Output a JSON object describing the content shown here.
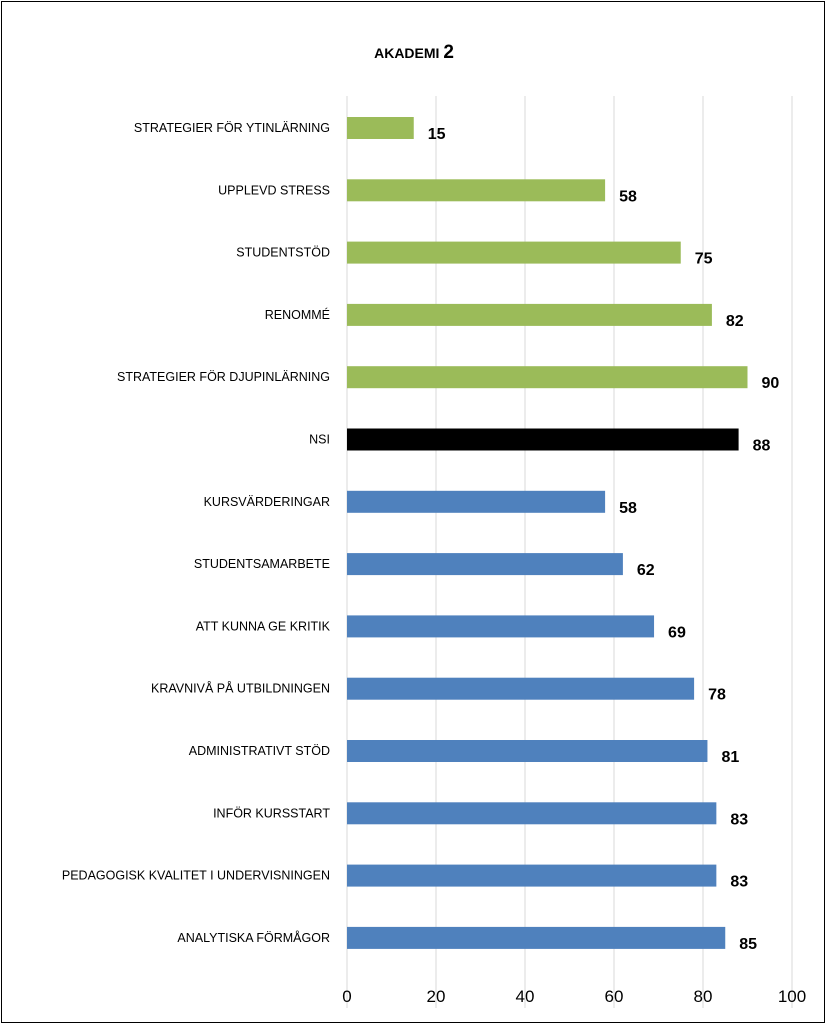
{
  "chart_data": {
    "type": "bar",
    "orientation": "horizontal",
    "title": {
      "prefix": "AKADEMI",
      "number": "2"
    },
    "categories": [
      "STRATEGIER FÖR YTINLÄRNING",
      "UPPLEVD STRESS",
      "STUDENTSTÖD",
      "RENOMMÉ",
      "STRATEGIER FÖR DJUPINLÄRNING",
      "NSI",
      "KURSVÄRDERINGAR",
      "STUDENTSAMARBETE",
      "ATT KUNNA GE KRITIK",
      "KRAVNIVÅ PÅ UTBILDNINGEN",
      "ADMINISTRATIVT STÖD",
      "INFÖR KURSSTART",
      "PEDAGOGISK KVALITET I UNDERVISNINGEN",
      "ANALYTISKA FÖRMÅGOR"
    ],
    "values": [
      15,
      58,
      75,
      82,
      90,
      88,
      58,
      62,
      69,
      78,
      81,
      83,
      83,
      85
    ],
    "bar_colors": [
      "#9BBB59",
      "#9BBB59",
      "#9BBB59",
      "#9BBB59",
      "#9BBB59",
      "#000000",
      "#4F81BD",
      "#4F81BD",
      "#4F81BD",
      "#4F81BD",
      "#4F81BD",
      "#4F81BD",
      "#4F81BD",
      "#4F81BD"
    ],
    "xlim": [
      0,
      100
    ],
    "x_ticks": [
      0,
      20,
      40,
      60,
      80,
      100
    ],
    "grid": true,
    "legend": "none"
  }
}
